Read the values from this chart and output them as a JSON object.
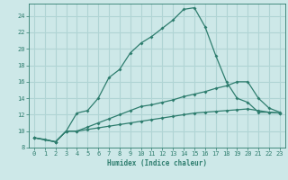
{
  "xlabel": "Humidex (Indice chaleur)",
  "bg_color": "#cde8e8",
  "grid_color": "#b0d4d4",
  "line_color": "#2e7d6e",
  "xlim": [
    -0.5,
    23.5
  ],
  "ylim": [
    8,
    25.5
  ],
  "xticks": [
    0,
    1,
    2,
    3,
    4,
    5,
    6,
    7,
    8,
    9,
    10,
    11,
    12,
    13,
    14,
    15,
    16,
    17,
    18,
    19,
    20,
    21,
    22,
    23
  ],
  "yticks": [
    8,
    10,
    12,
    14,
    16,
    18,
    20,
    22,
    24
  ],
  "line1_x": [
    0,
    1,
    2,
    3,
    4,
    5,
    6,
    7,
    8,
    9,
    10,
    11,
    12,
    13,
    14,
    15,
    16,
    17,
    18,
    19,
    20,
    21,
    22,
    23
  ],
  "line1_y": [
    9.2,
    9.0,
    8.7,
    10.0,
    12.2,
    12.5,
    14.0,
    16.5,
    17.5,
    19.5,
    20.7,
    21.5,
    22.5,
    23.5,
    24.8,
    25.0,
    22.7,
    19.2,
    16.0,
    14.0,
    13.5,
    12.3,
    12.3,
    12.2
  ],
  "line2_x": [
    0,
    2,
    3,
    4,
    5,
    6,
    7,
    8,
    9,
    10,
    11,
    12,
    13,
    14,
    15,
    16,
    17,
    18,
    19,
    20,
    21,
    22,
    23
  ],
  "line2_y": [
    9.2,
    8.7,
    10.0,
    10.0,
    10.5,
    11.0,
    11.5,
    12.0,
    12.5,
    13.0,
    13.2,
    13.5,
    13.8,
    14.2,
    14.5,
    14.8,
    15.2,
    15.5,
    16.0,
    16.0,
    14.0,
    12.8,
    12.3
  ],
  "line3_x": [
    0,
    2,
    3,
    4,
    5,
    6,
    7,
    8,
    9,
    10,
    11,
    12,
    13,
    14,
    15,
    16,
    17,
    18,
    19,
    20,
    21,
    22,
    23
  ],
  "line3_y": [
    9.2,
    8.7,
    10.0,
    10.0,
    10.2,
    10.4,
    10.6,
    10.8,
    11.0,
    11.2,
    11.4,
    11.6,
    11.8,
    12.0,
    12.2,
    12.3,
    12.4,
    12.5,
    12.6,
    12.7,
    12.5,
    12.3,
    12.2
  ]
}
